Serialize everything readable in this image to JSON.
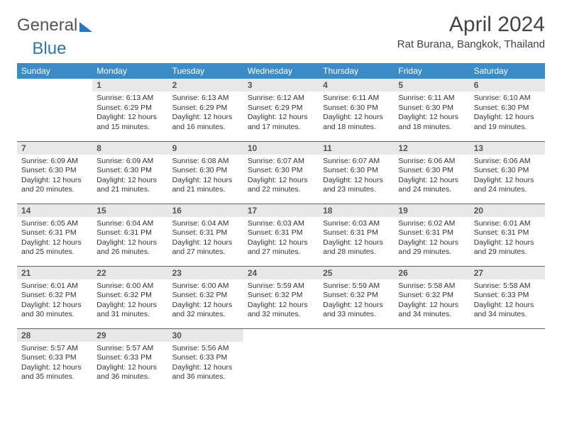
{
  "logo": {
    "part1": "General",
    "part2": "Blue"
  },
  "header": {
    "month_title": "April 2024",
    "location": "Rat Burana, Bangkok, Thailand"
  },
  "colors": {
    "header_bg": "#3b8bc7",
    "row_border": "#2f6fa3",
    "daynum_bg": "#e8e8e8",
    "logo_blue": "#2e75b6"
  },
  "weekdays": [
    "Sunday",
    "Monday",
    "Tuesday",
    "Wednesday",
    "Thursday",
    "Friday",
    "Saturday"
  ],
  "weeks": [
    [
      null,
      {
        "n": "1",
        "sr": "Sunrise: 6:13 AM",
        "ss": "Sunset: 6:29 PM",
        "dl": "Daylight: 12 hours and 15 minutes."
      },
      {
        "n": "2",
        "sr": "Sunrise: 6:13 AM",
        "ss": "Sunset: 6:29 PM",
        "dl": "Daylight: 12 hours and 16 minutes."
      },
      {
        "n": "3",
        "sr": "Sunrise: 6:12 AM",
        "ss": "Sunset: 6:29 PM",
        "dl": "Daylight: 12 hours and 17 minutes."
      },
      {
        "n": "4",
        "sr": "Sunrise: 6:11 AM",
        "ss": "Sunset: 6:30 PM",
        "dl": "Daylight: 12 hours and 18 minutes."
      },
      {
        "n": "5",
        "sr": "Sunrise: 6:11 AM",
        "ss": "Sunset: 6:30 PM",
        "dl": "Daylight: 12 hours and 18 minutes."
      },
      {
        "n": "6",
        "sr": "Sunrise: 6:10 AM",
        "ss": "Sunset: 6:30 PM",
        "dl": "Daylight: 12 hours and 19 minutes."
      }
    ],
    [
      {
        "n": "7",
        "sr": "Sunrise: 6:09 AM",
        "ss": "Sunset: 6:30 PM",
        "dl": "Daylight: 12 hours and 20 minutes."
      },
      {
        "n": "8",
        "sr": "Sunrise: 6:09 AM",
        "ss": "Sunset: 6:30 PM",
        "dl": "Daylight: 12 hours and 21 minutes."
      },
      {
        "n": "9",
        "sr": "Sunrise: 6:08 AM",
        "ss": "Sunset: 6:30 PM",
        "dl": "Daylight: 12 hours and 21 minutes."
      },
      {
        "n": "10",
        "sr": "Sunrise: 6:07 AM",
        "ss": "Sunset: 6:30 PM",
        "dl": "Daylight: 12 hours and 22 minutes."
      },
      {
        "n": "11",
        "sr": "Sunrise: 6:07 AM",
        "ss": "Sunset: 6:30 PM",
        "dl": "Daylight: 12 hours and 23 minutes."
      },
      {
        "n": "12",
        "sr": "Sunrise: 6:06 AM",
        "ss": "Sunset: 6:30 PM",
        "dl": "Daylight: 12 hours and 24 minutes."
      },
      {
        "n": "13",
        "sr": "Sunrise: 6:06 AM",
        "ss": "Sunset: 6:30 PM",
        "dl": "Daylight: 12 hours and 24 minutes."
      }
    ],
    [
      {
        "n": "14",
        "sr": "Sunrise: 6:05 AM",
        "ss": "Sunset: 6:31 PM",
        "dl": "Daylight: 12 hours and 25 minutes."
      },
      {
        "n": "15",
        "sr": "Sunrise: 6:04 AM",
        "ss": "Sunset: 6:31 PM",
        "dl": "Daylight: 12 hours and 26 minutes."
      },
      {
        "n": "16",
        "sr": "Sunrise: 6:04 AM",
        "ss": "Sunset: 6:31 PM",
        "dl": "Daylight: 12 hours and 27 minutes."
      },
      {
        "n": "17",
        "sr": "Sunrise: 6:03 AM",
        "ss": "Sunset: 6:31 PM",
        "dl": "Daylight: 12 hours and 27 minutes."
      },
      {
        "n": "18",
        "sr": "Sunrise: 6:03 AM",
        "ss": "Sunset: 6:31 PM",
        "dl": "Daylight: 12 hours and 28 minutes."
      },
      {
        "n": "19",
        "sr": "Sunrise: 6:02 AM",
        "ss": "Sunset: 6:31 PM",
        "dl": "Daylight: 12 hours and 29 minutes."
      },
      {
        "n": "20",
        "sr": "Sunrise: 6:01 AM",
        "ss": "Sunset: 6:31 PM",
        "dl": "Daylight: 12 hours and 29 minutes."
      }
    ],
    [
      {
        "n": "21",
        "sr": "Sunrise: 6:01 AM",
        "ss": "Sunset: 6:32 PM",
        "dl": "Daylight: 12 hours and 30 minutes."
      },
      {
        "n": "22",
        "sr": "Sunrise: 6:00 AM",
        "ss": "Sunset: 6:32 PM",
        "dl": "Daylight: 12 hours and 31 minutes."
      },
      {
        "n": "23",
        "sr": "Sunrise: 6:00 AM",
        "ss": "Sunset: 6:32 PM",
        "dl": "Daylight: 12 hours and 32 minutes."
      },
      {
        "n": "24",
        "sr": "Sunrise: 5:59 AM",
        "ss": "Sunset: 6:32 PM",
        "dl": "Daylight: 12 hours and 32 minutes."
      },
      {
        "n": "25",
        "sr": "Sunrise: 5:59 AM",
        "ss": "Sunset: 6:32 PM",
        "dl": "Daylight: 12 hours and 33 minutes."
      },
      {
        "n": "26",
        "sr": "Sunrise: 5:58 AM",
        "ss": "Sunset: 6:32 PM",
        "dl": "Daylight: 12 hours and 34 minutes."
      },
      {
        "n": "27",
        "sr": "Sunrise: 5:58 AM",
        "ss": "Sunset: 6:33 PM",
        "dl": "Daylight: 12 hours and 34 minutes."
      }
    ],
    [
      {
        "n": "28",
        "sr": "Sunrise: 5:57 AM",
        "ss": "Sunset: 6:33 PM",
        "dl": "Daylight: 12 hours and 35 minutes."
      },
      {
        "n": "29",
        "sr": "Sunrise: 5:57 AM",
        "ss": "Sunset: 6:33 PM",
        "dl": "Daylight: 12 hours and 36 minutes."
      },
      {
        "n": "30",
        "sr": "Sunrise: 5:56 AM",
        "ss": "Sunset: 6:33 PM",
        "dl": "Daylight: 12 hours and 36 minutes."
      },
      null,
      null,
      null,
      null
    ]
  ]
}
